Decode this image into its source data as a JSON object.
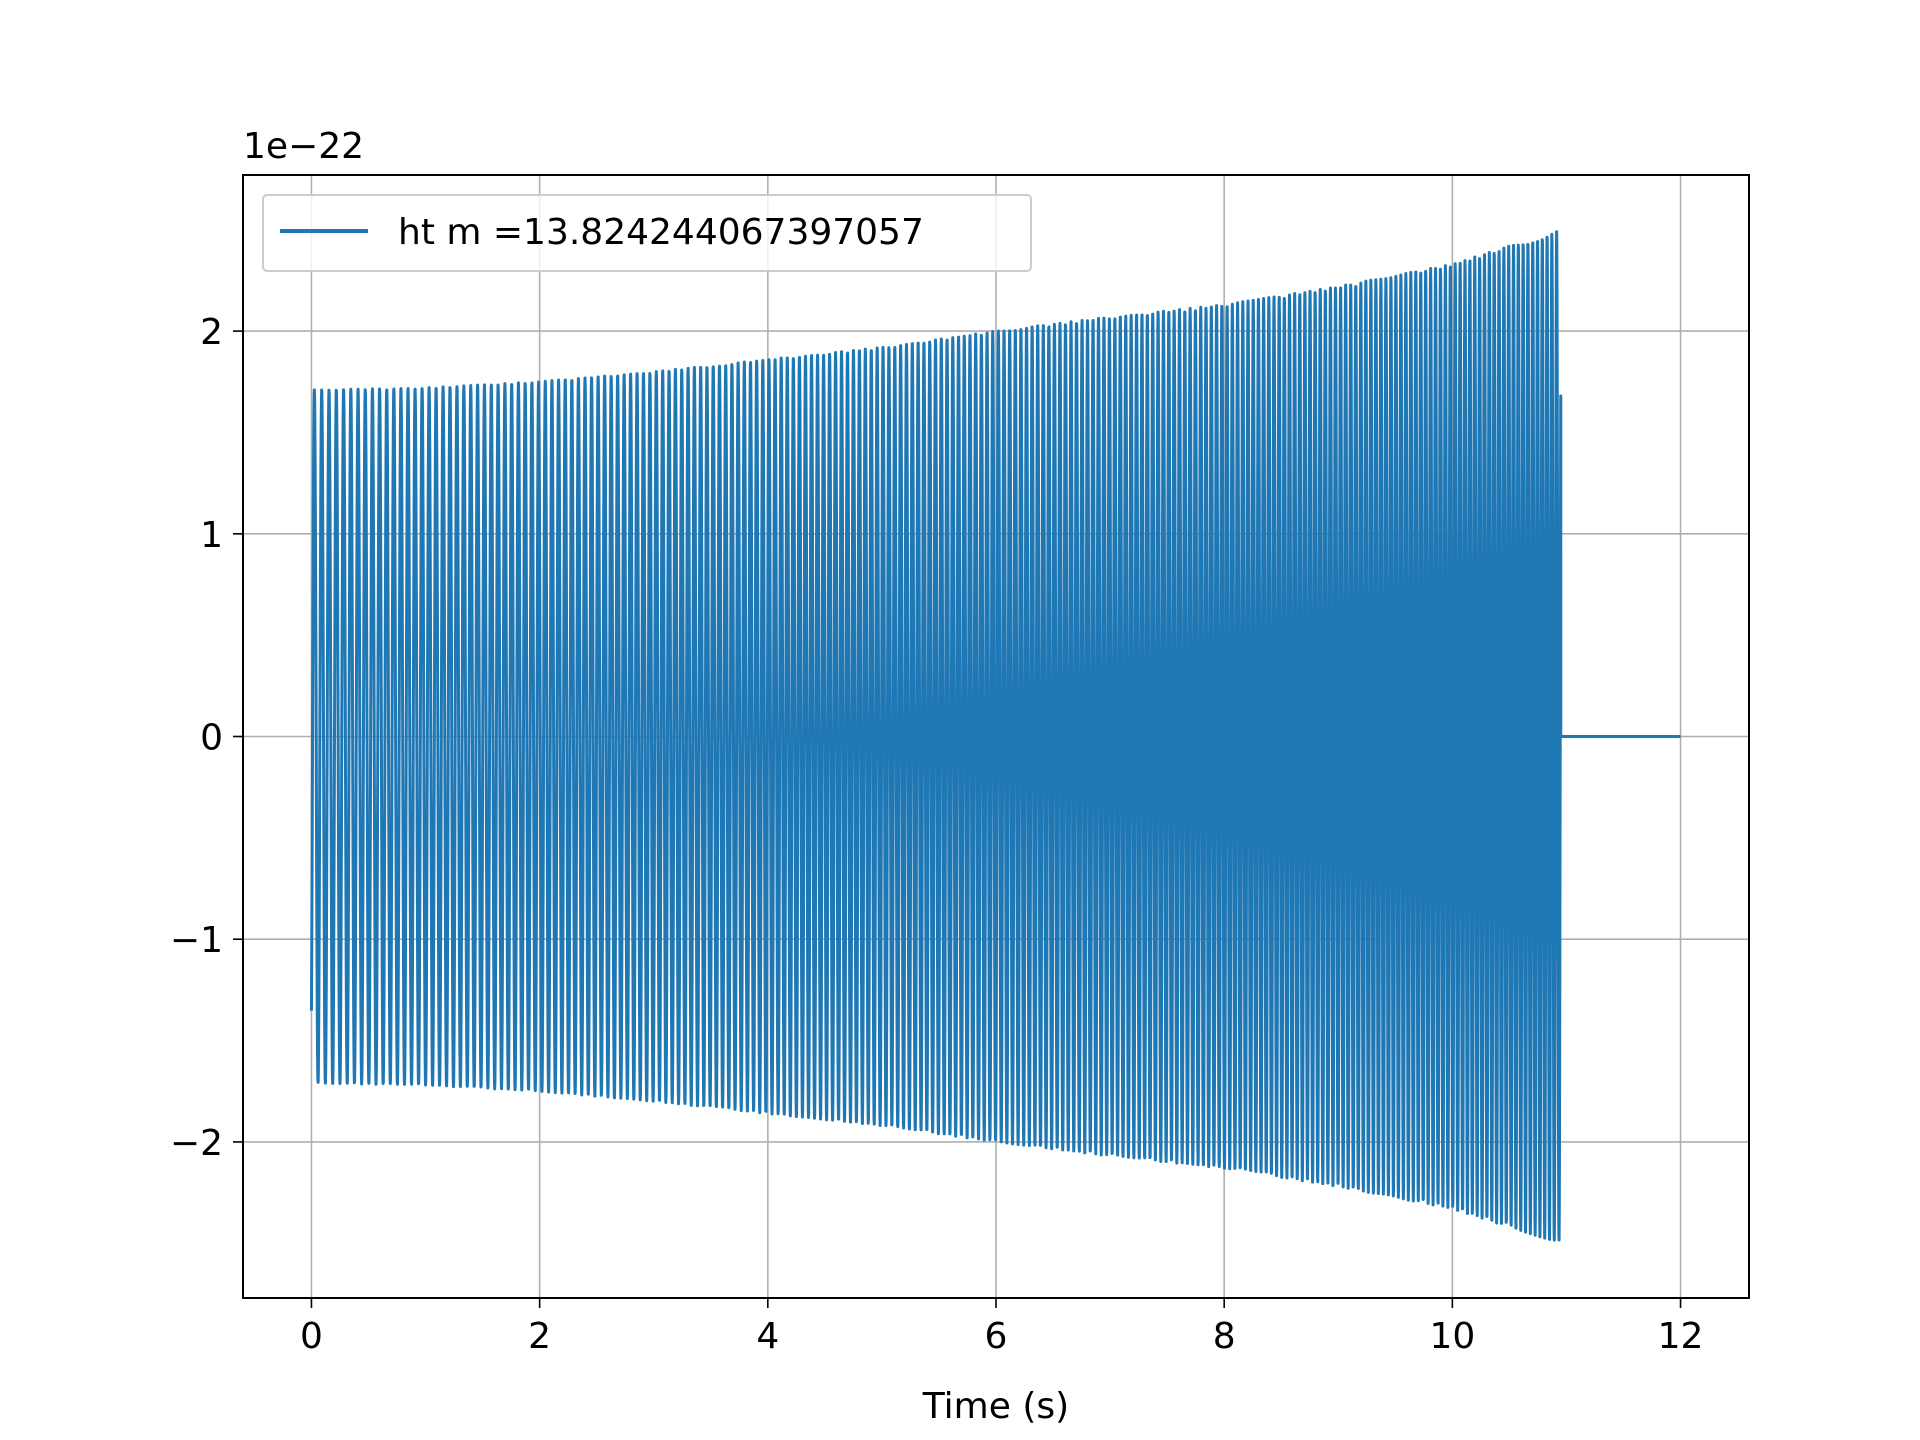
{
  "chart_data": {
    "type": "line",
    "title": "",
    "xlabel": "Time (s)",
    "ylabel": "",
    "y_offset_label": "1e−22",
    "xlim": [
      -0.6,
      12.6
    ],
    "ylim": [
      -2.77,
      2.77
    ],
    "xticks": [
      0,
      2,
      4,
      6,
      8,
      10,
      12
    ],
    "xtick_labels": [
      "0",
      "2",
      "4",
      "6",
      "8",
      "10",
      "12"
    ],
    "yticks": [
      -2,
      -1,
      0,
      1,
      2
    ],
    "ytick_labels": [
      "−2",
      "−1",
      "0",
      "1",
      "2"
    ],
    "grid": true,
    "legend_position": "upper-left",
    "series": [
      {
        "name": "ht m =13.824244067397057",
        "color": "#1f77b4",
        "description": "oscillating chirp, amplitude grows with time until merger, then zero",
        "start_time": 0.0,
        "end_signal_time": 10.95,
        "end_time": 12.0,
        "envelope": {
          "t": [
            0.0,
            1.0,
            2.0,
            3.0,
            4.0,
            5.0,
            6.0,
            7.0,
            8.0,
            9.0,
            10.0,
            10.5,
            10.95
          ],
          "amplitude": [
            1.71,
            1.72,
            1.75,
            1.8,
            1.86,
            1.92,
            2.0,
            2.07,
            2.13,
            2.22,
            2.33,
            2.42,
            2.5
          ]
        },
        "after_signal_value": 0.0
      }
    ]
  }
}
